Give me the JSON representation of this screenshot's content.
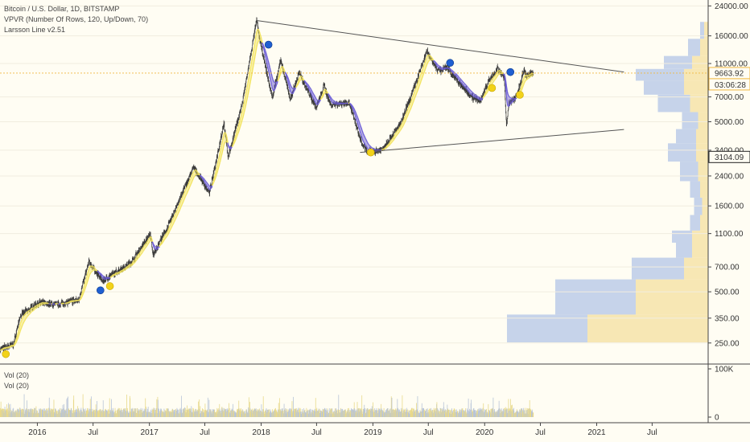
{
  "legend": {
    "title": "Bitcoin / U.S. Dollar, 1D, BITSTAMP",
    "indicator1": "VPVR (Number Of Rows, 120, Up/Down, 70)",
    "indicator2": "Larsson Line v2.51"
  },
  "volume_legend": {
    "line1": "Vol (20)",
    "line2": "Vol (20)"
  },
  "price_axis": {
    "ticks": [
      "24000.00",
      "16000.00",
      "11000.00",
      "7000.00",
      "5000.00",
      "3400.00",
      "2400.00",
      "1600.00",
      "1100.00",
      "700.00",
      "500.00",
      "350.00",
      "250.00"
    ],
    "current_price": "9663.92",
    "countdown": "03:06:28",
    "marked_price": "3104.09"
  },
  "volume_axis": {
    "ticks": [
      "100K",
      "0"
    ]
  },
  "time_axis": {
    "ticks": [
      "2016",
      "Jul",
      "2017",
      "Jul",
      "2018",
      "Jul",
      "2019",
      "Jul",
      "2020",
      "Jul",
      "2021",
      "Jul"
    ]
  },
  "colors": {
    "background": "#fffdf3",
    "larsson_yellow": "#f2e35c",
    "larsson_purple": "#6b5cd6",
    "candle": "#3a3a3a",
    "trendline": "#555555",
    "price_line": "#f0b840",
    "vpvr_up": "#c6d3ea",
    "vpvr_down": "#f7e7b4",
    "marker_blue": "#1f5fd1",
    "marker_yellow": "#f2d21a"
  },
  "chart_data": {
    "type": "line",
    "symbol": "BTCUSD",
    "timeframe": "1D",
    "exchange": "BITSTAMP",
    "yscale": "log",
    "ylim": [
      190,
      26000
    ],
    "xlim": [
      "2015-09-01",
      "2021-12-31"
    ],
    "series": [
      {
        "values_x": [
          "2015-09-01",
          "2015-10-15",
          "2015-11-05",
          "2016-01-01",
          "2016-03-01",
          "2016-05-15",
          "2016-06-17",
          "2016-08-01",
          "2016-11-01",
          "2017-01-04",
          "2017-01-12",
          "2017-03-01",
          "2017-05-25",
          "2017-07-16",
          "2017-09-01",
          "2017-09-15",
          "2017-11-01",
          "2017-12-17",
          "2018-01-01",
          "2018-02-06",
          "2018-03-05",
          "2018-04-06",
          "2018-05-05",
          "2018-06-30",
          "2018-07-25",
          "2018-08-15",
          "2018-10-15",
          "2018-11-25",
          "2018-12-15",
          "2019-02-01",
          "2019-04-02",
          "2019-05-15",
          "2019-06-26",
          "2019-08-01",
          "2019-09-01",
          "2019-10-15",
          "2019-11-25",
          "2019-12-17",
          "2020-01-15",
          "2020-02-12",
          "2020-03-05",
          "2020-03-12",
          "2020-03-20",
          "2020-04-15",
          "2020-05-08",
          "2020-05-15",
          "2020-06-01",
          "2020-06-08"
        ],
        "values_y": [
          230,
          245,
          360,
          430,
          420,
          450,
          750,
          580,
          740,
          1100,
          820,
          1200,
          2700,
          1900,
          4900,
          3100,
          6500,
          19700,
          13800,
          6900,
          11500,
          6800,
          9700,
          6000,
          8200,
          6300,
          6500,
          3700,
          3300,
          3450,
          4900,
          7900,
          13000,
          10000,
          10400,
          8200,
          6900,
          6600,
          8800,
          10300,
          9000,
          4800,
          6400,
          7100,
          10000,
          9300,
          9600,
          9663.92
        ]
      }
    ],
    "trendlines": [
      {
        "from": {
          "x": "2017-12-17",
          "y": 19700
        },
        "to": {
          "x": "2021-03-31",
          "y": 9800
        }
      },
      {
        "from": {
          "x": "2018-11-20",
          "y": 3300
        },
        "to": {
          "x": "2021-03-31",
          "y": 4500
        }
      }
    ],
    "markers": [
      {
        "x": "2015-09-20",
        "y": 215,
        "color": "yellow"
      },
      {
        "x": "2016-07-25",
        "y": 510,
        "color": "blue"
      },
      {
        "x": "2016-08-25",
        "y": 540,
        "color": "yellow"
      },
      {
        "x": "2018-01-25",
        "y": 14200,
        "color": "blue"
      },
      {
        "x": "2018-12-25",
        "y": 3300,
        "color": "yellow"
      },
      {
        "x": "2019-09-10",
        "y": 11100,
        "color": "blue"
      },
      {
        "x": "2020-01-25",
        "y": 7900,
        "color": "yellow"
      },
      {
        "x": "2020-03-25",
        "y": 9800,
        "color": "blue"
      },
      {
        "x": "2020-04-25",
        "y": 7200,
        "color": "yellow"
      }
    ],
    "volume_profile": [
      {
        "price": 270,
        "up": 0.4,
        "down": 0.6
      },
      {
        "price": 500,
        "up": 0.4,
        "down": 0.36
      },
      {
        "price": 700,
        "up": 0.26,
        "down": 0.12
      },
      {
        "price": 900,
        "up": 0.08,
        "down": 0.08
      },
      {
        "price": 1050,
        "up": 0.1,
        "down": 0.08
      },
      {
        "price": 1250,
        "up": 0.05,
        "down": 0.04
      },
      {
        "price": 1600,
        "up": 0.04,
        "down": 0.03
      },
      {
        "price": 2000,
        "up": 0.05,
        "down": 0.04
      },
      {
        "price": 2500,
        "up": 0.09,
        "down": 0.05
      },
      {
        "price": 3400,
        "up": 0.14,
        "down": 0.06
      },
      {
        "price": 4100,
        "up": 0.1,
        "down": 0.06
      },
      {
        "price": 5000,
        "up": 0.08,
        "down": 0.05
      },
      {
        "price": 6500,
        "up": 0.16,
        "down": 0.09
      },
      {
        "price": 8000,
        "up": 0.2,
        "down": 0.12
      },
      {
        "price": 9500,
        "up": 0.24,
        "down": 0.12
      },
      {
        "price": 11000,
        "up": 0.14,
        "down": 0.08
      },
      {
        "price": 13500,
        "up": 0.06,
        "down": 0.04
      },
      {
        "price": 17500,
        "up": 0.02,
        "down": 0.02
      }
    ]
  }
}
